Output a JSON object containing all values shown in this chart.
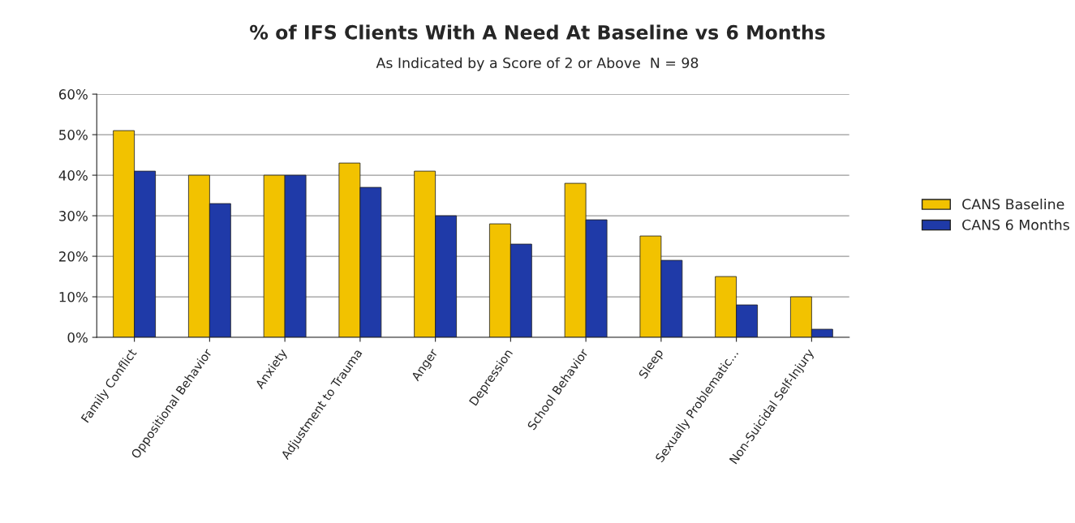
{
  "chart_data": {
    "type": "bar",
    "title": "% of IFS Clients With A Need At Baseline vs 6 Months",
    "subtitle": "As Indicated by a Score of 2 or Above  N = 98",
    "categories": [
      "Family Conflict",
      "Oppositional Behavior",
      "Anxiety",
      "Adjustment to Trauma",
      "Anger",
      "Depression",
      "School Behavior",
      "Sleep",
      "Sexually Problematic...",
      "Non-Suicidal Self-Injury"
    ],
    "series": [
      {
        "name": "CANS Baseline",
        "color": "#f2c200",
        "values": [
          51,
          40,
          40,
          43,
          41,
          28,
          38,
          25,
          15,
          10
        ]
      },
      {
        "name": "CANS 6 Months",
        "color": "#1f3aa8",
        "values": [
          41,
          33,
          40,
          37,
          30,
          23,
          29,
          19,
          8,
          2
        ]
      }
    ],
    "ylim": [
      0,
      60
    ],
    "yticks": [
      {
        "value": 0,
        "label": "0%"
      },
      {
        "value": 10,
        "label": "10%"
      },
      {
        "value": 20,
        "label": "20%"
      },
      {
        "value": 30,
        "label": "30%"
      },
      {
        "value": 40,
        "label": "40%"
      },
      {
        "value": 50,
        "label": "50%"
      },
      {
        "value": 60,
        "label": "60%"
      }
    ],
    "grid": "y",
    "legend": "right"
  }
}
